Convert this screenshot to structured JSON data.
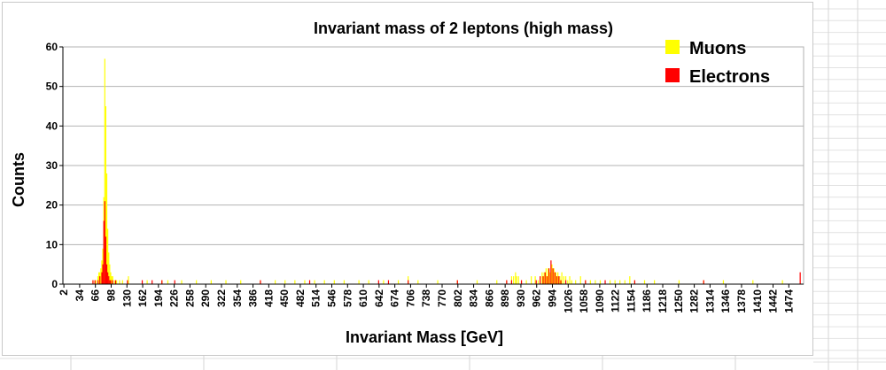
{
  "chart_data": {
    "type": "bar",
    "title": "Invariant mass of 2 leptons (high mass)",
    "xlabel": "Invariant Mass [GeV]",
    "ylabel": "Counts",
    "ylim": [
      0,
      60
    ],
    "yticks": [
      0,
      10,
      20,
      30,
      40,
      50,
      60
    ],
    "xlim": [
      0,
      1504
    ],
    "x_tick_labels": [
      "2",
      "34",
      "66",
      "98",
      "130",
      "162",
      "194",
      "226",
      "258",
      "290",
      "322",
      "354",
      "386",
      "418",
      "450",
      "482",
      "514",
      "546",
      "578",
      "610",
      "642",
      "674",
      "706",
      "738",
      "770",
      "802",
      "834",
      "866",
      "898",
      "930",
      "962",
      "994",
      "1026",
      "1058",
      "1090",
      "1122",
      "1154",
      "1186",
      "1218",
      "1250",
      "1282",
      "1314",
      "1346",
      "1378",
      "1410",
      "1442",
      "1474"
    ],
    "bin_width_gev": 2,
    "grid": "horizontal",
    "legend_position": "top-right",
    "colors": {
      "Muons": "#ffff00",
      "Electrons": "#ff0000"
    },
    "series": [
      {
        "name": "Muons",
        "color": "#ffff00",
        "x": [
          60,
          64,
          66,
          70,
          72,
          74,
          76,
          78,
          80,
          82,
          84,
          86,
          88,
          90,
          92,
          94,
          96,
          98,
          100,
          104,
          108,
          114,
          120,
          132,
          170,
          200,
          212,
          240,
          270,
          300,
          330,
          360,
          400,
          430,
          450,
          470,
          490,
          510,
          530,
          550,
          570,
          600,
          620,
          650,
          680,
          700,
          720,
          760,
          800,
          840,
          880,
          900,
          910,
          914,
          918,
          920,
          924,
          930,
          940,
          950,
          958,
          964,
          968,
          972,
          976,
          980,
          984,
          988,
          992,
          996,
          1000,
          1004,
          1008,
          1012,
          1016,
          1020,
          1024,
          1028,
          1032,
          1040,
          1050,
          1060,
          1070,
          1080,
          1090,
          1110,
          1120,
          1130,
          1140,
          1150,
          1160,
          1180,
          1200,
          1250,
          1300,
          1340,
          1400,
          1460
        ],
        "values": [
          1,
          1,
          1,
          2,
          3,
          3,
          4,
          6,
          9,
          22,
          57,
          45,
          28,
          14,
          8,
          5,
          3,
          2,
          2,
          1,
          1,
          1,
          1,
          2,
          1,
          1,
          1,
          1,
          1,
          1,
          1,
          1,
          1,
          1,
          1,
          1,
          1,
          1,
          1,
          1,
          1,
          1,
          1,
          1,
          1,
          2,
          1,
          1,
          1,
          1,
          1,
          1,
          2,
          2,
          3,
          2,
          2,
          1,
          1,
          2,
          2,
          1,
          2,
          3,
          3,
          4,
          4,
          3,
          5,
          4,
          3,
          3,
          2,
          3,
          2,
          2,
          1,
          2,
          1,
          1,
          2,
          1,
          1,
          1,
          1,
          1,
          1,
          1,
          1,
          2,
          1,
          1,
          1,
          1,
          1,
          1,
          1,
          1
        ]
      },
      {
        "name": "Electrons",
        "color": "#ff0000",
        "x": [
          60,
          64,
          70,
          74,
          78,
          80,
          82,
          84,
          86,
          88,
          90,
          92,
          94,
          96,
          100,
          106,
          130,
          160,
          180,
          200,
          226,
          400,
          500,
          640,
          660,
          700,
          800,
          900,
          910,
          930,
          960,
          968,
          974,
          978,
          982,
          986,
          990,
          994,
          998,
          1002,
          1006,
          1010,
          1020,
          1060,
          1100,
          1160,
          1300,
          1496
        ],
        "values": [
          1,
          1,
          1,
          2,
          3,
          5,
          16,
          21,
          12,
          5,
          3,
          2,
          1,
          1,
          1,
          1,
          1,
          1,
          1,
          1,
          1,
          1,
          1,
          1,
          1,
          1,
          1,
          1,
          1,
          1,
          1,
          2,
          2,
          3,
          2,
          4,
          6,
          4,
          3,
          2,
          2,
          1,
          1,
          1,
          1,
          1,
          1,
          3
        ]
      }
    ]
  }
}
